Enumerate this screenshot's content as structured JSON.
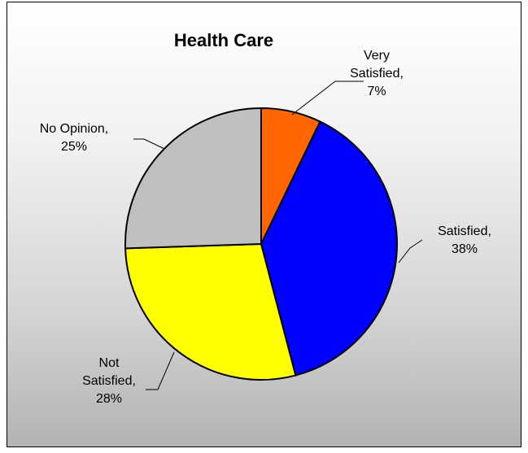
{
  "chart_data": {
    "type": "pie",
    "title": "Health Care",
    "slices": [
      {
        "label_lines": [
          "Very",
          "Satisfied,",
          "7%"
        ],
        "value": 7,
        "color": "#ff6600"
      },
      {
        "label_lines": [
          "Satisfied,",
          "38%"
        ],
        "value": 38,
        "color": "#0000ff"
      },
      {
        "label_lines": [
          "Not",
          "Satisfied,",
          "28%"
        ],
        "value": 28,
        "color": "#ffff00"
      },
      {
        "label_lines": [
          "No Opinion,",
          "25%"
        ],
        "value": 25,
        "color": "#c0c0c0"
      }
    ],
    "start_angle": "12 o'clock",
    "direction": "clockwise"
  }
}
